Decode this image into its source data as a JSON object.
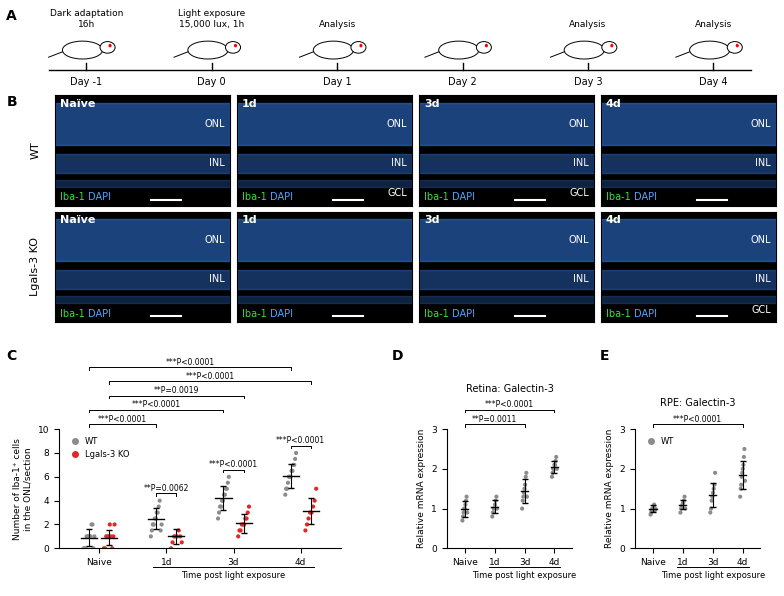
{
  "timeline": {
    "label": "A",
    "days": [
      "Day -1",
      "Day 0",
      "Day 1",
      "Day 2",
      "Day 3",
      "Day 4"
    ],
    "events": [
      "Dark adaptation\n16h",
      "Light exposure\n15,000 lux, 1h",
      "Analysis",
      null,
      "Analysis",
      "Analysis"
    ]
  },
  "images": {
    "label": "B",
    "stain": [
      {
        "text": "Iba-1",
        "color": "#3ddc3d"
      },
      {
        "text": "DAPI",
        "color": "#4da6ff"
      }
    ],
    "rows": [
      {
        "name": "WT",
        "panels": [
          {
            "time": "Naïve",
            "layers": [
              "ONL",
              "INL"
            ]
          },
          {
            "time": "1d",
            "layers": [
              "ONL",
              "INL",
              "GCL"
            ]
          },
          {
            "time": "3d",
            "layers": [
              "ONL",
              "INL",
              "GCL"
            ]
          },
          {
            "time": "4d",
            "layers": [
              "ONL",
              "INL"
            ]
          }
        ]
      },
      {
        "name": "Lgals-3 KO",
        "panels": [
          {
            "time": "Naïve",
            "layers": [
              "ONL",
              "INL"
            ]
          },
          {
            "time": "1d",
            "layers": []
          },
          {
            "time": "3d",
            "layers": [
              "ONL",
              "INL"
            ]
          },
          {
            "time": "4d",
            "layers": [
              "ONL",
              "INL",
              "GCL"
            ]
          }
        ]
      }
    ]
  },
  "chart_data": [
    {
      "panel_label": "C",
      "type": "scatter",
      "categories": [
        "Naive",
        "1d",
        "3d",
        "4d"
      ],
      "y_label": "Number of Iba-1⁺ cells\nin the ONL/section",
      "x_label": "Time post light exposure",
      "ylim": [
        0,
        10
      ],
      "yticks": [
        0,
        2,
        4,
        6,
        8,
        10
      ],
      "legend": "upper left",
      "series": [
        {
          "name": "WT",
          "color": "#8c8c8c",
          "values": [
            [
              0,
              0,
              0,
              1,
              1,
              1,
              1,
              1,
              2,
              2,
              0,
              1
            ],
            [
              1,
              1.5,
              2,
              2,
              2.5,
              2.5,
              3,
              3,
              3.5,
              4,
              1.5,
              2
            ],
            [
              2.5,
              3,
              3.5,
              3.5,
              4,
              4,
              4.5,
              4.5,
              5,
              5,
              5.5,
              6
            ],
            [
              4.5,
              5,
              5,
              5.5,
              6,
              6,
              6,
              6.5,
              6.5,
              7,
              7,
              7.5,
              8
            ]
          ],
          "mean": [
            0.9,
            2.5,
            4.2,
            6.1
          ],
          "sd": [
            0.7,
            0.9,
            1.0,
            1.0
          ]
        },
        {
          "name": "Lgals-3 KO",
          "color": "#e02828",
          "values": [
            [
              0,
              0,
              1,
              1,
              1,
              2,
              1,
              0,
              1,
              2
            ],
            [
              0,
              0.5,
              1,
              1,
              1,
              1.5,
              1,
              0.5
            ],
            [
              1,
              1.5,
              1.5,
              2,
              2,
              2,
              2.5,
              2.5,
              3,
              3.5
            ],
            [
              1.5,
              2,
              2.5,
              3,
              3,
              3.5,
              4,
              5
            ]
          ],
          "mean": [
            0.9,
            1.0,
            2.1,
            3.1
          ],
          "sd": [
            0.6,
            0.6,
            0.8,
            1.1
          ]
        }
      ],
      "comparisons": [
        {
          "series": "WT",
          "from": "Naive",
          "to": "4d",
          "label": "***P<0.0001"
        },
        {
          "series": "Lgals-3 KO",
          "from": "Naive",
          "to": "4d",
          "label": "***P<0.0001"
        },
        {
          "series": "Lgals-3 KO",
          "from": "Naive",
          "to": "3d",
          "label": "**P=0.0019"
        },
        {
          "series": "WT",
          "from": "Naive",
          "to": "3d",
          "label": "***P<0.0001"
        },
        {
          "series": "WT",
          "from": "Naive",
          "to": "1d",
          "label": "***P<0.0001"
        },
        {
          "at": "1d",
          "label": "**P=0.0062"
        },
        {
          "at": "3d",
          "label": "***P<0.0001"
        },
        {
          "at": "4d",
          "label": "***P<0.0001"
        }
      ]
    },
    {
      "panel_label": "D",
      "type": "scatter",
      "title": "Retina: Galectin-3",
      "categories": [
        "Naive",
        "1d",
        "3d",
        "4d"
      ],
      "y_label": "Relative mRNA expression",
      "x_label": "Time post light exposure",
      "ylim": [
        0,
        3
      ],
      "yticks": [
        0,
        1,
        2,
        3
      ],
      "series": [
        {
          "name": "WT",
          "color": "#8c8c8c",
          "values": [
            [
              0.7,
              0.8,
              0.9,
              1.0,
              1.0,
              1.1,
              1.2,
              1.3,
              0.9
            ],
            [
              0.8,
              0.9,
              1.0,
              1.0,
              1.1,
              1.2,
              1.3,
              1.0
            ],
            [
              1.0,
              1.2,
              1.3,
              1.4,
              1.5,
              1.6,
              1.8,
              1.9,
              1.3
            ],
            [
              1.8,
              1.9,
              2.0,
              2.0,
              2.1,
              2.1,
              2.2,
              2.3,
              2.0
            ]
          ],
          "mean": [
            1.0,
            1.05,
            1.45,
            2.05
          ],
          "sd": [
            0.2,
            0.17,
            0.3,
            0.15
          ]
        }
      ],
      "comparisons": [
        {
          "from": "Naive",
          "to": "4d",
          "label": "***P<0.0001"
        },
        {
          "from": "Naive",
          "to": "3d",
          "label": "**P=0.0011"
        }
      ]
    },
    {
      "panel_label": "E",
      "type": "scatter",
      "title": "RPE: Galectin-3",
      "categories": [
        "Naive",
        "1d",
        "3d",
        "4d"
      ],
      "y_label": "Relative mRNA expression",
      "x_label": "Time post light exposure",
      "ylim": [
        0,
        3
      ],
      "yticks": [
        0,
        1,
        2,
        3
      ],
      "legend": "upper left",
      "series": [
        {
          "name": "WT",
          "color": "#8c8c8c",
          "values": [
            [
              0.85,
              0.9,
              0.95,
              1.0,
              1.0,
              1.05,
              1.1,
              0.95,
              1.0
            ],
            [
              0.9,
              1.0,
              1.05,
              1.1,
              1.15,
              1.2,
              1.3,
              1.0
            ],
            [
              0.9,
              1.0,
              1.2,
              1.3,
              1.4,
              1.5,
              1.6,
              1.9
            ],
            [
              1.3,
              1.5,
              1.6,
              1.8,
              1.9,
              2.0,
              2.1,
              2.3,
              2.5,
              1.7
            ]
          ],
          "mean": [
            1.0,
            1.1,
            1.35,
            1.85
          ],
          "sd": [
            0.08,
            0.12,
            0.3,
            0.35
          ]
        }
      ],
      "comparisons": [
        {
          "from": "Naive",
          "to": "4d",
          "label": "***P<0.0001"
        }
      ]
    }
  ]
}
